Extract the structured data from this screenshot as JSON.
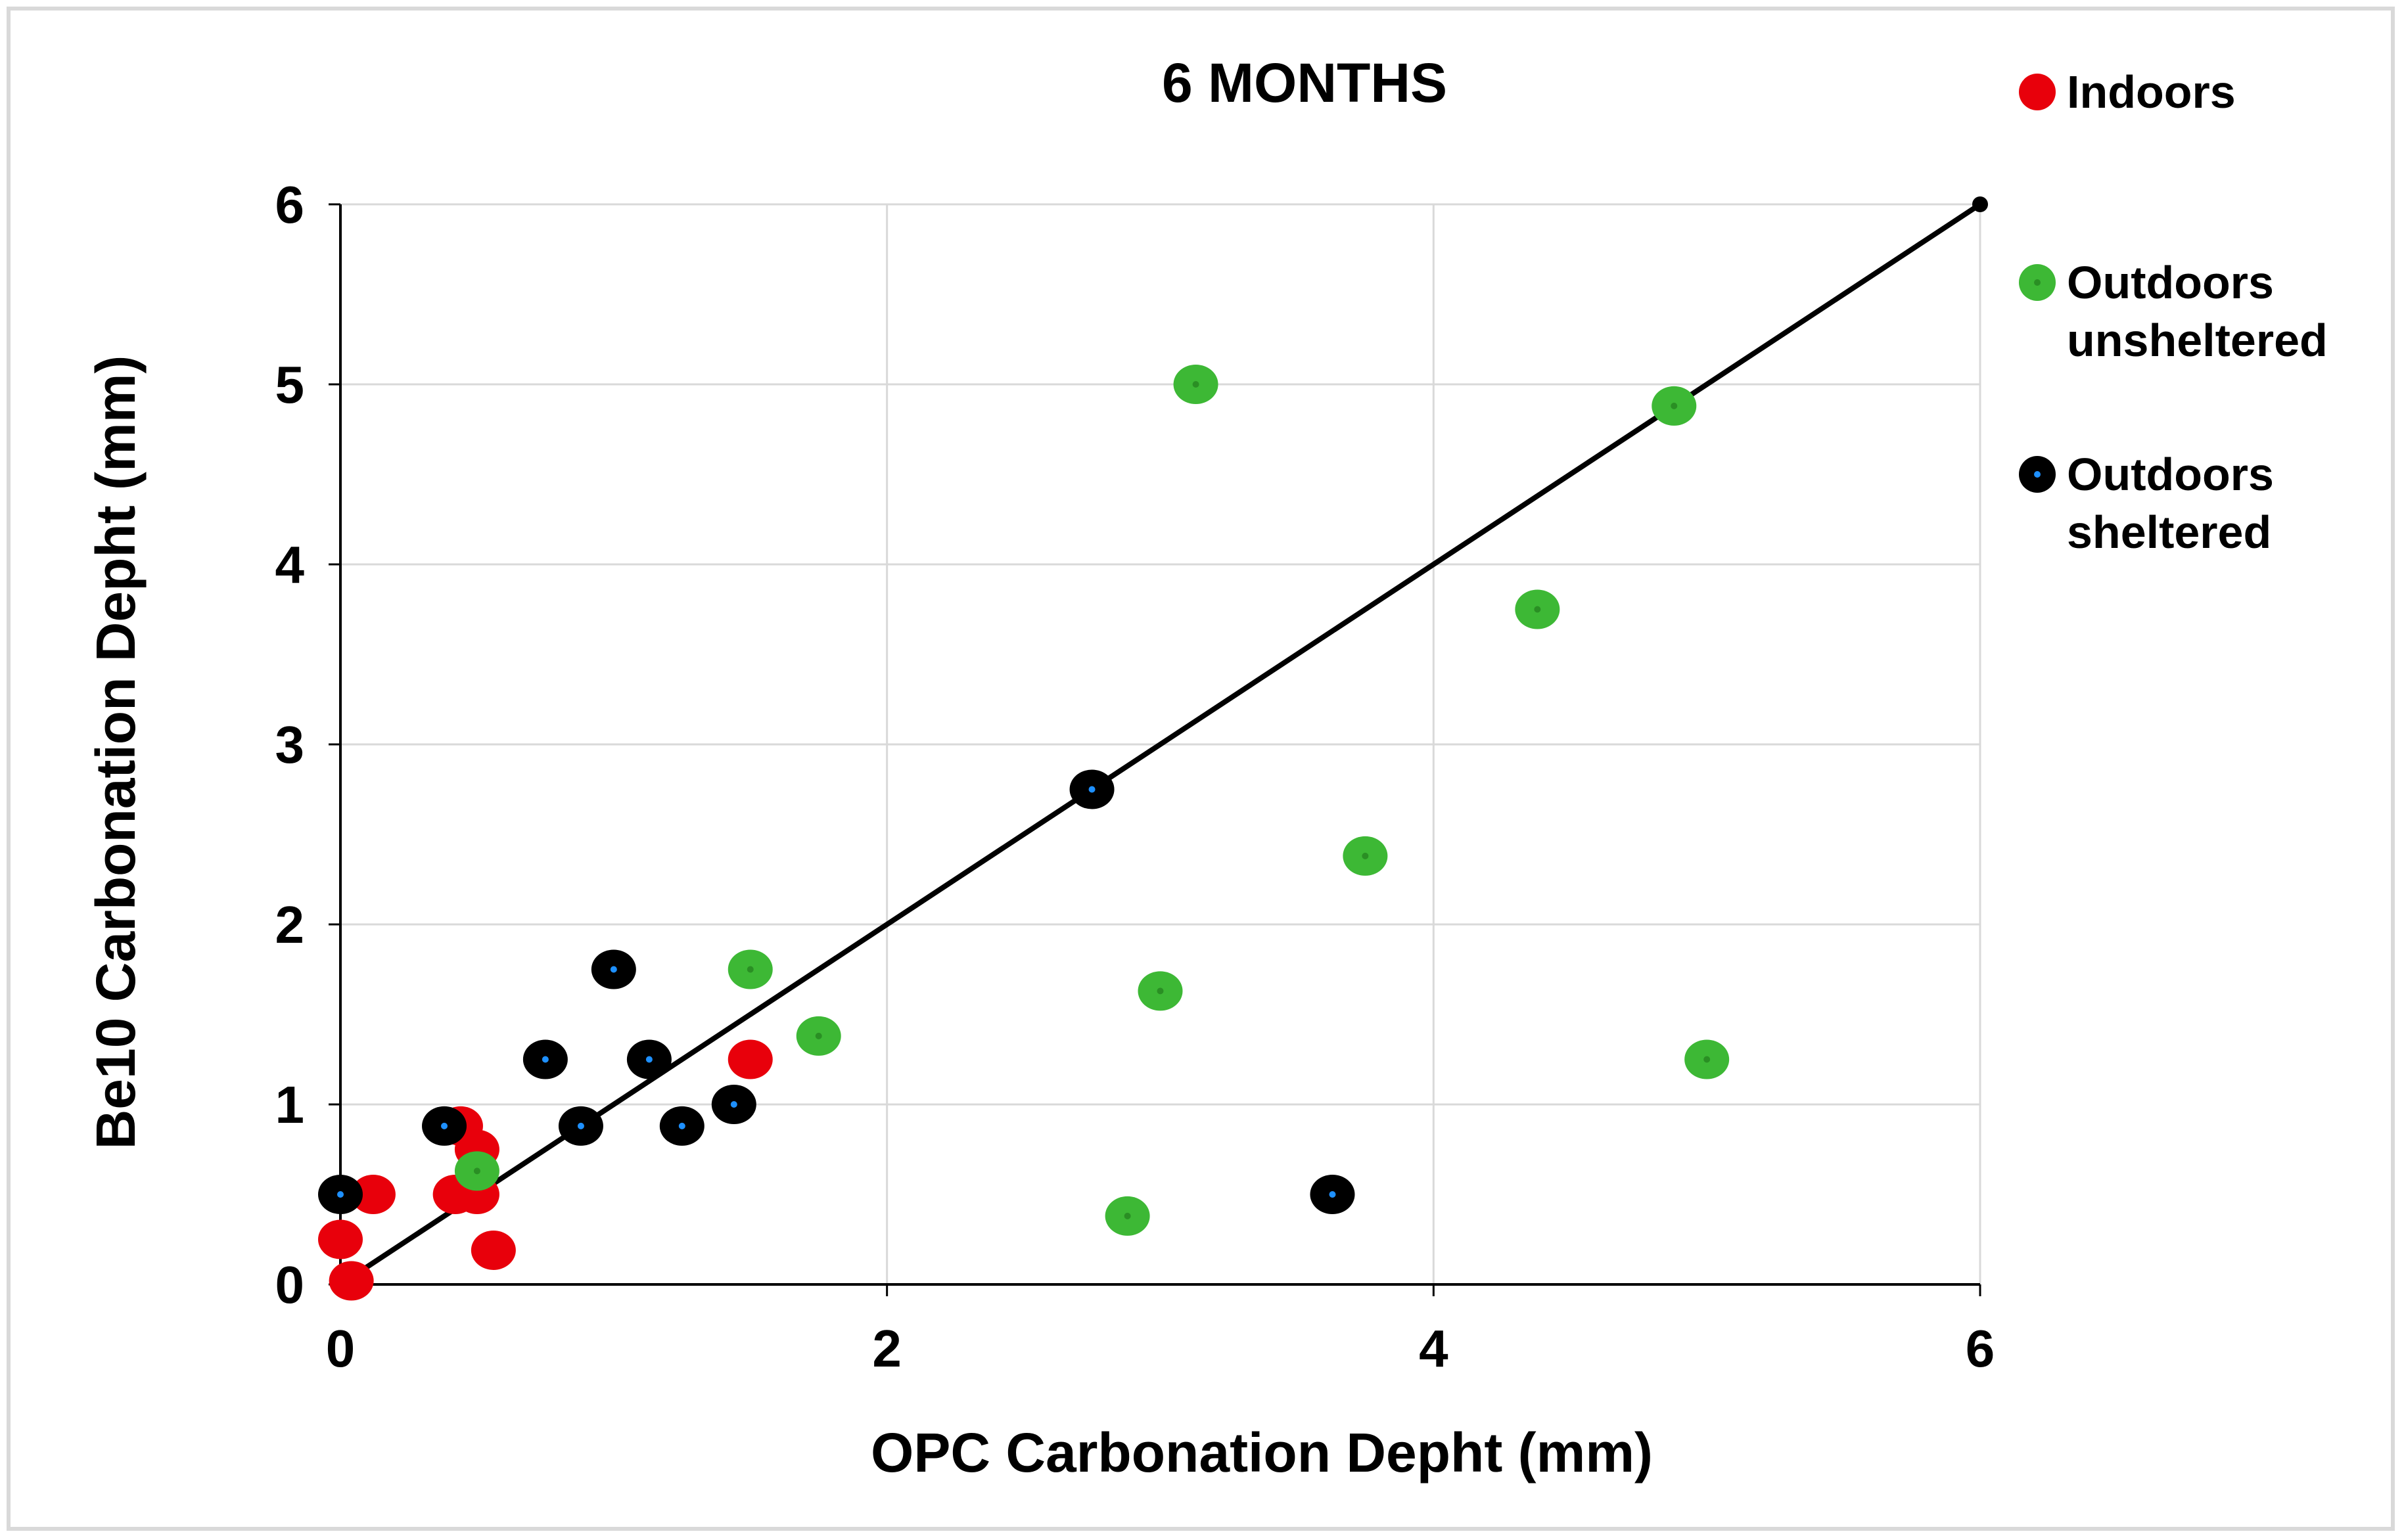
{
  "chart_data": {
    "type": "scatter",
    "title": "6 MONTHS",
    "xlabel": "OPC Carbonation Depht (mm)",
    "ylabel": "Be10 Carbonation Depht (mm)",
    "xlim": [
      0,
      6
    ],
    "ylim": [
      0,
      6
    ],
    "xticks": [
      "0",
      "2",
      "4",
      "6"
    ],
    "yticks": [
      "0",
      "1",
      "2",
      "3",
      "4",
      "5",
      "6"
    ],
    "grid": true,
    "legend_position": "right",
    "reference_line": {
      "name": "y = x",
      "points": [
        [
          0,
          0
        ],
        [
          6,
          6
        ]
      ],
      "color": "#000000"
    },
    "series": [
      {
        "name": "Indoors",
        "legend": [
          "Indoors"
        ],
        "color": "#e8000b",
        "points": [
          [
            0.0,
            0.25
          ],
          [
            0.12,
            0.5
          ],
          [
            0.04,
            0.02
          ],
          [
            0.42,
            0.5
          ],
          [
            0.44,
            0.88
          ],
          [
            0.5,
            0.75
          ],
          [
            0.5,
            0.5
          ],
          [
            0.56,
            0.19
          ],
          [
            1.5,
            1.25
          ]
        ]
      },
      {
        "name": "Outdoors unsheltered",
        "legend": [
          "Outdoors",
          "unsheltered"
        ],
        "color": "#3db835",
        "points": [
          [
            0.5,
            0.63
          ],
          [
            1.5,
            1.75
          ],
          [
            1.75,
            1.38
          ],
          [
            2.88,
            0.38
          ],
          [
            3.0,
            1.63
          ],
          [
            3.13,
            5.0
          ],
          [
            3.75,
            2.38
          ],
          [
            4.38,
            3.75
          ],
          [
            4.88,
            4.88
          ],
          [
            5.0,
            1.25
          ]
        ]
      },
      {
        "name": "Outdoors sheltered",
        "legend": [
          "Outdoors",
          "sheltered"
        ],
        "color": "#000000",
        "points": [
          [
            0.0,
            0.5
          ],
          [
            0.38,
            0.88
          ],
          [
            0.75,
            1.25
          ],
          [
            0.88,
            0.88
          ],
          [
            1.0,
            1.75
          ],
          [
            1.13,
            1.25
          ],
          [
            1.25,
            0.88
          ],
          [
            1.44,
            1.0
          ],
          [
            2.75,
            2.75
          ],
          [
            3.63,
            0.5
          ]
        ]
      }
    ]
  }
}
